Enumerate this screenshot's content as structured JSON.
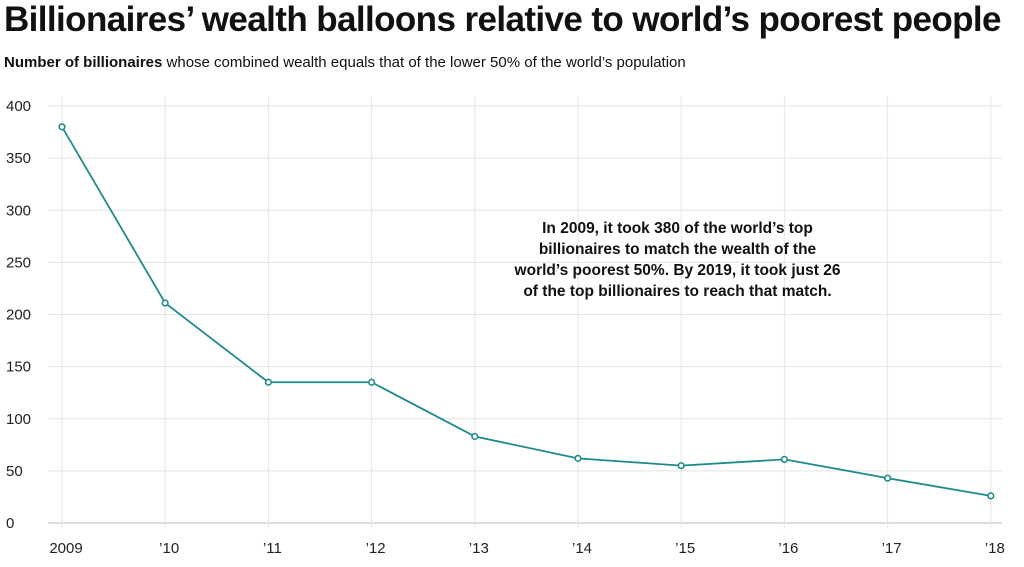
{
  "chart_data": {
    "type": "line",
    "title": "Billionaires’ wealth balloons relative to world’s poorest people",
    "subtitle_bold": "Number of billionaires",
    "subtitle_rest": " whose combined wealth equals that of the lower 50% of the world’s population",
    "categories": [
      "2009",
      "’10",
      "’11",
      "’12",
      "’13",
      "’14",
      "’15",
      "’16",
      "’17",
      "’18"
    ],
    "values": [
      380,
      211,
      135,
      135,
      83,
      62,
      55,
      61,
      43,
      26
    ],
    "ylim": [
      0,
      400
    ],
    "yticks": [
      0,
      50,
      100,
      150,
      200,
      250,
      300,
      350,
      400
    ],
    "xlabel": "",
    "ylabel": "",
    "grid": true,
    "line_color": "#1f8a8a",
    "annotation": "In 2009, it took 380 of the world’s top billionaires to match the wealth of the world’s poorest 50%. By 2019, it took just 26 of the top billionaires to reach that match."
  }
}
